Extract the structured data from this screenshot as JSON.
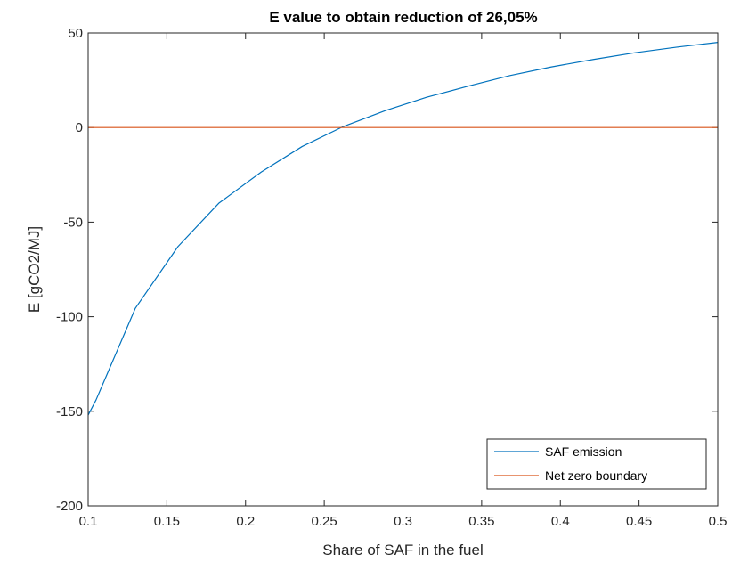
{
  "chart_data": {
    "type": "line",
    "title": "E value to obtain reduction of 26,05%",
    "xlabel": "Share of SAF in the fuel",
    "ylabel": "E [gCO2/MJ]",
    "xlim": [
      0.1,
      0.5
    ],
    "ylim": [
      -200,
      50
    ],
    "xticks": [
      0.1,
      0.15,
      0.2,
      0.25,
      0.3,
      0.35,
      0.4,
      0.45,
      0.5
    ],
    "xtick_labels": [
      "0.1",
      "0.15",
      "0.2",
      "0.25",
      "0.3",
      "0.35",
      "0.4",
      "0.45",
      "0.5"
    ],
    "yticks": [
      -200,
      -150,
      -100,
      -50,
      0,
      50
    ],
    "ytick_labels": [
      "-200",
      "-150",
      "-100",
      "-50",
      "0",
      "50"
    ],
    "grid": false,
    "legend_position": "bottom-right",
    "series": [
      {
        "name": "SAF emission",
        "color": "#0072BD",
        "x": [
          0.1,
          0.105,
          0.13,
          0.157,
          0.183,
          0.21,
          0.236,
          0.262,
          0.289,
          0.315,
          0.342,
          0.368,
          0.394,
          0.421,
          0.447,
          0.474,
          0.5
        ],
        "y": [
          -152,
          -144,
          -95.5,
          -63,
          -40,
          -23.5,
          -10,
          0.5,
          9,
          16,
          22,
          27.5,
          32,
          36,
          39.5,
          42.5,
          45
        ]
      },
      {
        "name": "Net zero boundary",
        "color": "#D95319",
        "x": [
          0.1,
          0.5
        ],
        "y": [
          0,
          0
        ]
      }
    ]
  }
}
